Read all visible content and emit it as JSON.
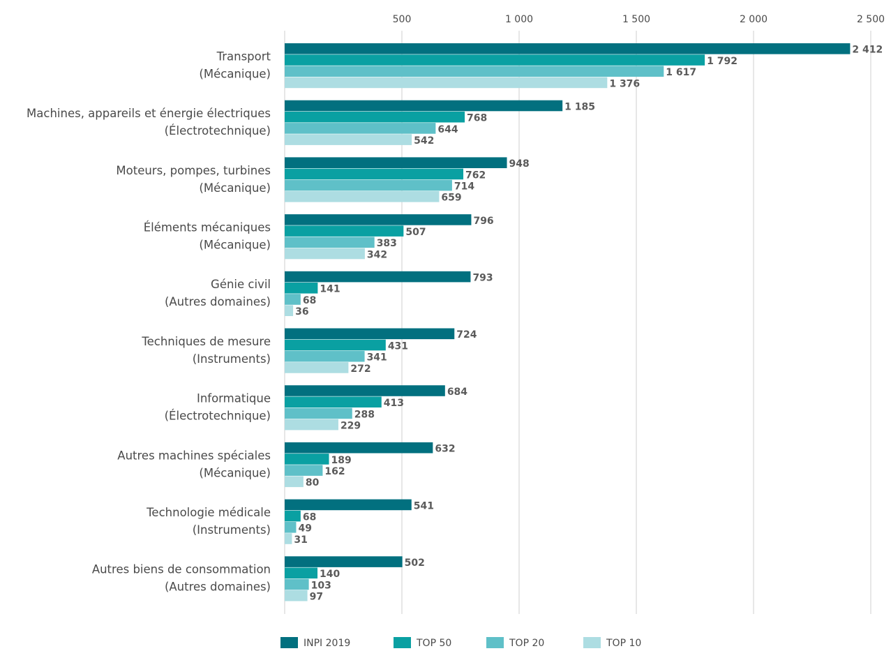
{
  "chart_data": {
    "type": "bar",
    "orientation": "horizontal",
    "categories": [
      [
        "Transport",
        "(Mécanique)"
      ],
      [
        "Machines, appareils et énergie électriques",
        "(Électrotechnique)"
      ],
      [
        "Moteurs, pompes, turbines",
        "(Mécanique)"
      ],
      [
        "Éléments mécaniques",
        "(Mécanique)"
      ],
      [
        "Génie civil",
        "(Autres domaines)"
      ],
      [
        "Techniques de mesure",
        "(Instruments)"
      ],
      [
        "Informatique",
        "(Électrotechnique)"
      ],
      [
        "Autres machines spéciales",
        "(Mécanique)"
      ],
      [
        "Technologie médicale",
        "(Instruments)"
      ],
      [
        "Autres biens de consommation",
        "(Autres domaines)"
      ]
    ],
    "series": [
      {
        "name": "INPI 2019",
        "color": "#02707f",
        "values": [
          2412,
          1185,
          948,
          796,
          793,
          724,
          684,
          632,
          541,
          502
        ]
      },
      {
        "name": "TOP 50",
        "color": "#0aa0a2",
        "values": [
          1792,
          768,
          762,
          507,
          141,
          431,
          413,
          189,
          68,
          140
        ]
      },
      {
        "name": "TOP 20",
        "color": "#5fc0c8",
        "values": [
          1617,
          644,
          714,
          383,
          68,
          341,
          288,
          162,
          49,
          103
        ]
      },
      {
        "name": "TOP 10",
        "color": "#addde2",
        "values": [
          1376,
          542,
          659,
          342,
          36,
          272,
          229,
          80,
          31,
          97
        ]
      }
    ],
    "data_labels": [
      [
        "2 412",
        "1 185",
        "948",
        "796",
        "793",
        "724",
        "684",
        "632",
        "541",
        "502"
      ],
      [
        "1 792",
        "768",
        "762",
        "507",
        "141",
        "431",
        "413",
        "189",
        "68",
        "140"
      ],
      [
        "1 617",
        "644",
        "714",
        "383",
        "68",
        "341",
        "288",
        "162",
        "49",
        "103"
      ],
      [
        "1 376",
        "542",
        "659",
        "342",
        "36",
        "272",
        "229",
        "80",
        "31",
        "97"
      ]
    ],
    "xticks": [
      500,
      1000,
      1500,
      2000,
      2500
    ],
    "xtick_labels": [
      "500",
      "1 000",
      "1 500",
      "2 000",
      "2 500"
    ],
    "xlim": [
      0,
      2500
    ],
    "xaxis_position": "top",
    "grid": "vertical",
    "legend_position": "bottom"
  }
}
